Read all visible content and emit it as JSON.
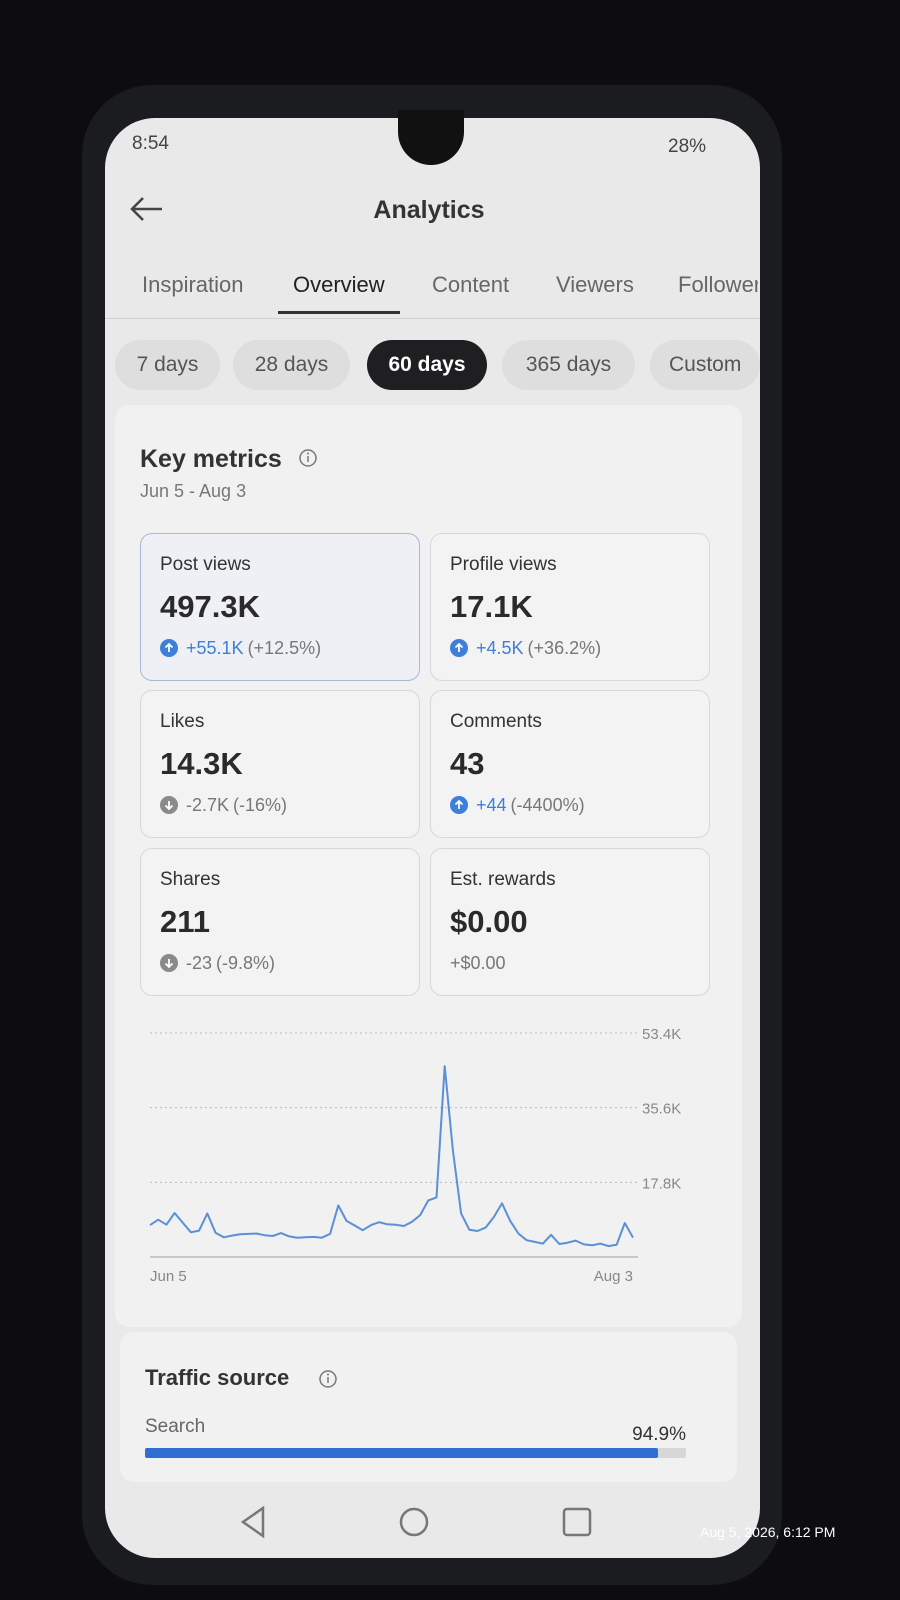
{
  "status_bar": {
    "time": "8:54",
    "battery": "28%"
  },
  "header": {
    "title": "Analytics"
  },
  "tabs": {
    "items": [
      "Inspiration",
      "Overview",
      "Content",
      "Viewers",
      "Followers"
    ],
    "active_index": 1
  },
  "periods": {
    "items": [
      "7 days",
      "28 days",
      "60 days",
      "365 days",
      "Custom"
    ],
    "active_index": 2
  },
  "key_metrics": {
    "title": "Key metrics",
    "date_range": "Jun 5 - Aug 3",
    "cards": [
      {
        "label": "Post views",
        "value": "497.3K",
        "delta": "+55.1K",
        "pct": "(+12.5%)",
        "direction": "up",
        "selected": true
      },
      {
        "label": "Profile views",
        "value": "17.1K",
        "delta": "+4.5K",
        "pct": "(+36.2%)",
        "direction": "up",
        "selected": false
      },
      {
        "label": "Likes",
        "value": "14.3K",
        "delta": "-2.7K",
        "pct": "(-16%)",
        "direction": "down",
        "selected": false
      },
      {
        "label": "Comments",
        "value": "43",
        "delta": "+44",
        "pct": "(-4400%)",
        "direction": "up",
        "selected": false
      },
      {
        "label": "Shares",
        "value": "211",
        "delta": "-23",
        "pct": "(-9.8%)",
        "direction": "down",
        "selected": false
      },
      {
        "label": "Est. rewards",
        "value": "$0.00",
        "delta": "+$0.00",
        "pct": "",
        "direction": "none",
        "selected": false
      }
    ]
  },
  "chart_data": {
    "type": "line",
    "color": "#5b8fd6",
    "categories": [
      "Jun 5",
      null,
      null,
      null,
      null,
      null,
      null,
      null,
      null,
      null,
      null,
      null,
      null,
      null,
      null,
      null,
      null,
      null,
      null,
      null,
      null,
      null,
      null,
      null,
      null,
      null,
      null,
      null,
      null,
      null,
      null,
      null,
      null,
      null,
      null,
      null,
      null,
      null,
      null,
      null,
      null,
      null,
      null,
      null,
      null,
      null,
      null,
      null,
      null,
      null,
      null,
      null,
      null,
      null,
      null,
      null,
      null,
      null,
      null,
      "Aug 3"
    ],
    "values": [
      7600,
      8900,
      7700,
      10500,
      8200,
      5900,
      6300,
      10400,
      5800,
      4700,
      5100,
      5400,
      5500,
      5600,
      5200,
      5000,
      5700,
      4900,
      4600,
      4700,
      4800,
      4600,
      5500,
      12300,
      8600,
      7500,
      6400,
      7600,
      8300,
      7800,
      7700,
      7400,
      8400,
      10000,
      13500,
      14200,
      45500,
      25400,
      10400,
      6500,
      6200,
      7000,
      9500,
      12800,
      8600,
      5600,
      4000,
      3600,
      3200,
      5300,
      3100,
      3400,
      3900,
      3000,
      2800,
      3200,
      2600,
      2900,
      8100,
      4600
    ],
    "ylim": [
      0,
      53400
    ],
    "yticks": [
      {
        "value": 17800,
        "label": "17.8K"
      },
      {
        "value": 35600,
        "label": "35.6K"
      },
      {
        "value": 53400,
        "label": "53.4K"
      }
    ],
    "grid": true
  },
  "traffic_source": {
    "title": "Traffic source",
    "name": "Search",
    "value": 94.9,
    "value_label": "94.9%"
  },
  "photo_timestamp": "Aug 5, 2026, 6:12 PM"
}
